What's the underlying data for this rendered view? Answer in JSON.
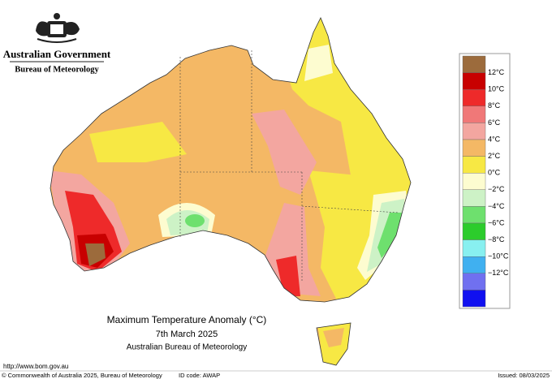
{
  "header": {
    "government": "Australian Government",
    "agency": "Bureau of Meteorology"
  },
  "legend": {
    "labels": [
      "12°C",
      "10°C",
      "8°C",
      "6°C",
      "4°C",
      "2°C",
      "0°C",
      "−2°C",
      "−4°C",
      "−6°C",
      "−8°C",
      "−10°C",
      "−12°C"
    ],
    "colors": [
      "#9c6b3c",
      "#c80000",
      "#ee2a2a",
      "#f07878",
      "#f3a6a0",
      "#f4b865",
      "#f7e844",
      "#fdfcd0",
      "#cdf2c6",
      "#6ee06e",
      "#2ccc2c",
      "#88f0f0",
      "#40b0f0",
      "#7070f0",
      "#1010f0"
    ]
  },
  "title": {
    "line1": "Maximum Temperature Anomaly (°C)",
    "line2": "7th March 2025",
    "line3": "Australian Bureau of Meteorology"
  },
  "footer": {
    "url": "http://www.bom.gov.au",
    "copyright": "© Commonwealth of Australia 2025, Bureau of Meteorology",
    "id_code": "ID code: AWAP",
    "issued": "Issued: 08/03/2025"
  }
}
